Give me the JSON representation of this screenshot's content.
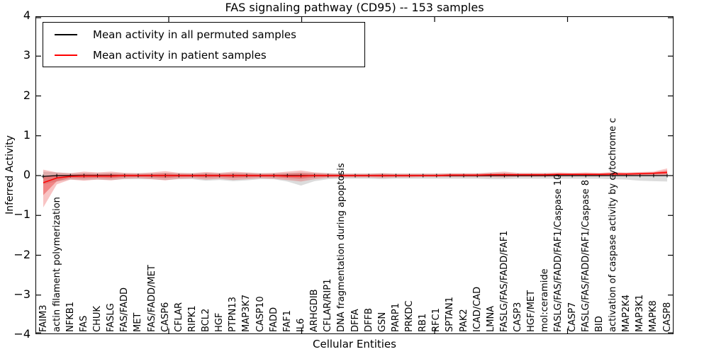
{
  "title": "FAS signaling pathway (CD95) -- 153 samples",
  "legend": {
    "items": [
      {
        "label": "Mean activity in all permuted samples",
        "color": "#000000"
      },
      {
        "label": "Mean activity in patient samples",
        "color": "#ff0000"
      }
    ]
  },
  "chart_data": {
    "type": "line",
    "title": "FAS signaling pathway (CD95) -- 153 samples",
    "xlabel": "Cellular Entities",
    "ylabel": "Inferred Activity",
    "ylim": [
      -4,
      4
    ],
    "yticks": [
      -4,
      -3,
      -2,
      -1,
      0,
      1,
      2,
      3,
      4
    ],
    "grid": false,
    "legend_position": "upper left",
    "categories": [
      "FAIM3",
      "actin filament polymerization",
      "NFKB1",
      "FAS",
      "CHUK",
      "FASLG",
      "FAS/FADD",
      "MET",
      "FAS/FADD/MET",
      "CASP6",
      "CFLAR",
      "RIPK1",
      "BCL2",
      "HGF",
      "PTPN13",
      "MAP3K7",
      "CASP10",
      "FADD",
      "FAF1",
      "IL6",
      "ARHGDIB",
      "CFLAR/RIP1",
      "DNA fragmentation during apoptosis",
      "DFFA",
      "DFFB",
      "GSN",
      "PARP1",
      "PRKDC",
      "RB1",
      "RFC1",
      "SPTAN1",
      "PAK2",
      "ICAD/CAD",
      "LMNA",
      "FASLG/FAS/FADD/FAF1",
      "CASP3",
      "HGF/MET",
      "mol:ceramide",
      "FASLG/FAS/FADD/FAF1/Caspase 10",
      "CASP7",
      "FASLG/FAS/FADD/FAF1/Caspase 8",
      "BID",
      "activation of caspase activity by cytochrome c",
      "MAP2K4",
      "MAP3K1",
      "MAPK8",
      "CASP8"
    ],
    "series": [
      {
        "name": "Mean activity in all permuted samples",
        "color": "#000000",
        "band_color": "#bfbfbf",
        "marker": "plus",
        "values": [
          -0.02,
          0,
          0,
          0,
          0,
          0,
          0,
          0,
          0,
          0,
          0,
          0,
          0,
          0,
          0,
          0,
          0,
          0,
          0,
          0,
          0,
          0,
          0,
          0,
          0,
          0,
          0,
          0,
          0,
          0,
          0,
          0,
          0,
          0,
          0,
          0,
          0,
          0,
          0,
          0,
          0,
          0,
          0,
          0,
          0,
          0,
          0
        ],
        "band_hi": [
          0.1,
          0.08,
          0.06,
          0.07,
          0.06,
          0.07,
          0.06,
          0.06,
          0.06,
          0.07,
          0.06,
          0.06,
          0.07,
          0.06,
          0.07,
          0.07,
          0.06,
          0.06,
          0.07,
          0.08,
          0.07,
          0.06,
          0.05,
          0.05,
          0.05,
          0.06,
          0.05,
          0.05,
          0.05,
          0.05,
          0.05,
          0.05,
          0.05,
          0.06,
          0.06,
          0.05,
          0.05,
          0.05,
          0.05,
          0.05,
          0.05,
          0.05,
          0.05,
          0.05,
          0.05,
          0.05,
          0.06
        ],
        "band_lo": [
          -0.22,
          -0.15,
          -0.1,
          -0.11,
          -0.1,
          -0.11,
          -0.09,
          -0.09,
          -0.09,
          -0.11,
          -0.09,
          -0.09,
          -0.13,
          -0.11,
          -0.14,
          -0.12,
          -0.09,
          -0.09,
          -0.15,
          -0.25,
          -0.14,
          -0.09,
          -0.08,
          -0.08,
          -0.08,
          -0.09,
          -0.08,
          -0.08,
          -0.08,
          -0.08,
          -0.08,
          -0.08,
          -0.08,
          -0.09,
          -0.09,
          -0.08,
          -0.08,
          -0.08,
          -0.08,
          -0.08,
          -0.08,
          -0.08,
          -0.09,
          -0.1,
          -0.13,
          -0.14,
          -0.15
        ]
      },
      {
        "name": "Mean activity in patient samples",
        "color": "#ff0000",
        "band_color": "#e83c3c",
        "marker": "none",
        "values": [
          -0.18,
          -0.06,
          -0.02,
          -0.01,
          -0.01,
          -0.01,
          0,
          0,
          0,
          0,
          0,
          0,
          0,
          0,
          0,
          0,
          0,
          0,
          -0.01,
          -0.01,
          0,
          0,
          0,
          0,
          0,
          0,
          0,
          0,
          0,
          0,
          0.01,
          0.01,
          0.01,
          0.02,
          0.02,
          0.02,
          0.02,
          0.02,
          0.03,
          0.03,
          0.03,
          0.03,
          0.04,
          0.04,
          0.05,
          0.06,
          0.08
        ],
        "band_hi": [
          0.15,
          0.08,
          0.06,
          0.1,
          0.08,
          0.1,
          0.07,
          0.06,
          0.08,
          0.11,
          0.07,
          0.06,
          0.09,
          0.07,
          0.1,
          0.08,
          0.06,
          0.07,
          0.1,
          0.13,
          0.08,
          0.06,
          0.05,
          0.05,
          0.05,
          0.06,
          0.05,
          0.05,
          0.05,
          0.05,
          0.06,
          0.06,
          0.06,
          0.08,
          0.1,
          0.07,
          0.07,
          0.07,
          0.08,
          0.07,
          0.08,
          0.07,
          0.09,
          0.08,
          0.09,
          0.1,
          0.18
        ],
        "band_lo": [
          -0.8,
          -0.22,
          -0.1,
          -0.13,
          -0.1,
          -0.12,
          -0.08,
          -0.07,
          -0.09,
          -0.12,
          -0.08,
          -0.07,
          -0.1,
          -0.08,
          -0.11,
          -0.09,
          -0.07,
          -0.08,
          -0.11,
          -0.15,
          -0.09,
          -0.06,
          -0.05,
          -0.05,
          -0.05,
          -0.06,
          -0.05,
          -0.05,
          -0.04,
          -0.04,
          -0.04,
          -0.04,
          -0.04,
          -0.04,
          -0.05,
          -0.03,
          -0.03,
          -0.03,
          -0.02,
          -0.02,
          -0.02,
          -0.02,
          -0.01,
          -0.01,
          -0.01,
          0.0,
          0.0
        ]
      }
    ]
  }
}
